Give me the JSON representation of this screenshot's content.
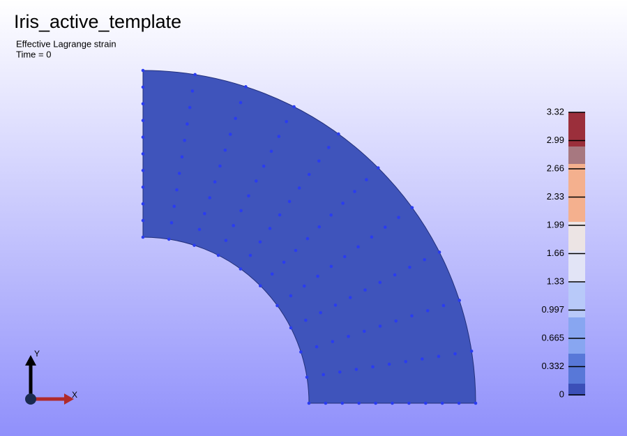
{
  "title": "Iris_active_template",
  "subtitle": [
    "Effective Lagrange strain",
    "Time = 0"
  ],
  "colorbar": {
    "labels": [
      "3.32",
      "2.99",
      "2.66",
      "2.33",
      "1.99",
      "1.66",
      "1.33",
      "0.997",
      "0.665",
      "0.332",
      "0"
    ]
  },
  "axes": {
    "y": "Y",
    "x": "X"
  }
}
